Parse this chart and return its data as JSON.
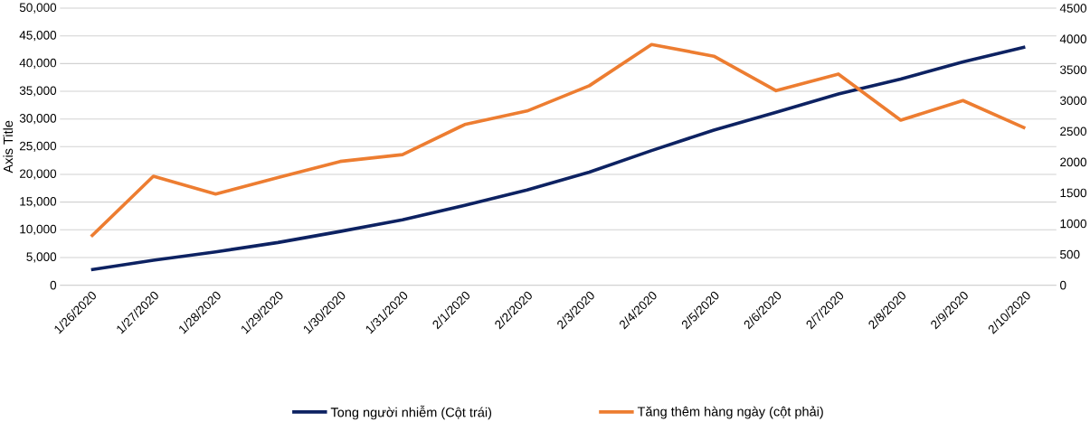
{
  "chart_data": {
    "type": "line",
    "ylabel": "Axis Title",
    "categories": [
      "1/26/2020",
      "1/27/2020",
      "1/28/2020",
      "1/29/2020",
      "1/30/2020",
      "1/31/2020",
      "2/1/2020",
      "2/2/2020",
      "2/3/2020",
      "2/4/2020",
      "2/5/2020",
      "2/6/2020",
      "2/7/2020",
      "2/8/2020",
      "2/9/2020",
      "2/10/2020"
    ],
    "series": [
      {
        "name": "Tong người nhiễm (Cột trái)",
        "color": "#0d2262",
        "values": [
          2800,
          4500,
          6000,
          7700,
          9700,
          11800,
          14400,
          17200,
          20400,
          24300,
          28000,
          31200,
          34500,
          37200,
          40300,
          43000
        ]
      },
      {
        "name": "Tăng thêm hàng ngày (cột phải)",
        "color": "#ed7d31",
        "axis": "y2",
        "values": [
          790,
          1770,
          1480,
          1750,
          2010,
          2120,
          2610,
          2830,
          3240,
          3910,
          3720,
          3160,
          3430,
          2680,
          3000,
          2550
        ]
      }
    ],
    "ylim": [
      0,
      50000
    ],
    "yticks": [
      {
        "value": 0,
        "label": "0"
      },
      {
        "value": 5000,
        "label": "5,000"
      },
      {
        "value": 10000,
        "label": "10,000"
      },
      {
        "value": 15000,
        "label": "15,000"
      },
      {
        "value": 20000,
        "label": "20,000"
      },
      {
        "value": 25000,
        "label": "25,000"
      },
      {
        "value": 30000,
        "label": "30,000"
      },
      {
        "value": 35000,
        "label": "35,000"
      },
      {
        "value": 40000,
        "label": "40,000"
      },
      {
        "value": 45000,
        "label": "45,000"
      },
      {
        "value": 50000,
        "label": "50,000"
      }
    ],
    "y2lim": [
      0,
      4500
    ],
    "y2ticks": [
      0,
      500,
      1000,
      1500,
      2000,
      2500,
      3000,
      3500,
      4000,
      4500
    ],
    "grid": "y",
    "legend": "bottom",
    "marker": "none",
    "line_style": "solid"
  }
}
